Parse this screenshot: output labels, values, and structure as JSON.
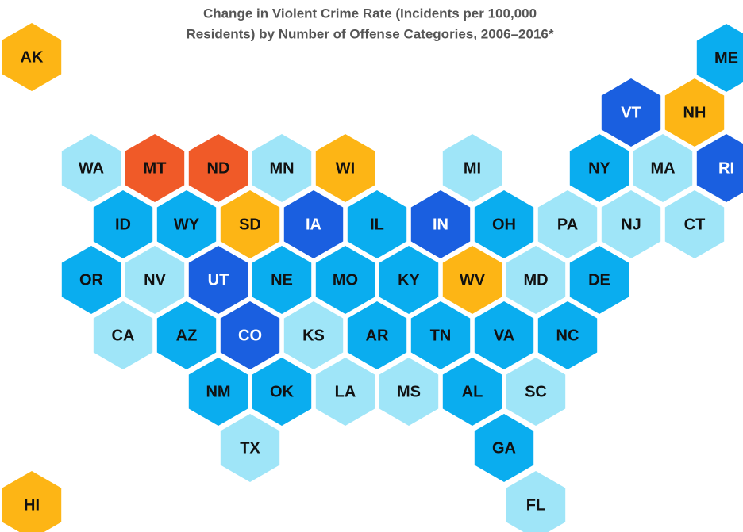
{
  "title": [
    "Change in Violent Crime Rate (Incidents per 100,000",
    "Residents) by Number of Offense Categories, 2006–2016*"
  ],
  "states": [
    {
      "label": "AK",
      "color": "#fdb515"
    },
    {
      "label": "ME",
      "color": "#0aadef"
    },
    {
      "label": "VT",
      "color": "#1a5fe0"
    },
    {
      "label": "NH",
      "color": "#fdb515"
    },
    {
      "label": "WA",
      "color": "#9fe5f8"
    },
    {
      "label": "MT",
      "color": "#f05a28"
    },
    {
      "label": "ND",
      "color": "#f05a28"
    },
    {
      "label": "MN",
      "color": "#9fe5f8"
    },
    {
      "label": "WI",
      "color": "#fdb515"
    },
    {
      "label": "MI",
      "color": "#9fe5f8"
    },
    {
      "label": "NY",
      "color": "#0aadef"
    },
    {
      "label": "MA",
      "color": "#9fe5f8"
    },
    {
      "label": "RI",
      "color": "#1a5fe0"
    },
    {
      "label": "ID",
      "color": "#0aadef"
    },
    {
      "label": "WY",
      "color": "#0aadef"
    },
    {
      "label": "SD",
      "color": "#fdb515"
    },
    {
      "label": "IA",
      "color": "#1a5fe0"
    },
    {
      "label": "IL",
      "color": "#0aadef"
    },
    {
      "label": "IN",
      "color": "#1a5fe0"
    },
    {
      "label": "OH",
      "color": "#0aadef"
    },
    {
      "label": "PA",
      "color": "#9fe5f8"
    },
    {
      "label": "NJ",
      "color": "#9fe5f8"
    },
    {
      "label": "CT",
      "color": "#9fe5f8"
    },
    {
      "label": "OR",
      "color": "#0aadef"
    },
    {
      "label": "NV",
      "color": "#9fe5f8"
    },
    {
      "label": "UT",
      "color": "#1a5fe0"
    },
    {
      "label": "NE",
      "color": "#0aadef"
    },
    {
      "label": "MO",
      "color": "#0aadef"
    },
    {
      "label": "KY",
      "color": "#0aadef"
    },
    {
      "label": "WV",
      "color": "#fdb515"
    },
    {
      "label": "MD",
      "color": "#9fe5f8"
    },
    {
      "label": "DE",
      "color": "#0aadef"
    },
    {
      "label": "CA",
      "color": "#9fe5f8"
    },
    {
      "label": "AZ",
      "color": "#0aadef"
    },
    {
      "label": "CO",
      "color": "#1a5fe0"
    },
    {
      "label": "KS",
      "color": "#9fe5f8"
    },
    {
      "label": "AR",
      "color": "#0aadef"
    },
    {
      "label": "TN",
      "color": "#0aadef"
    },
    {
      "label": "VA",
      "color": "#0aadef"
    },
    {
      "label": "NC",
      "color": "#0aadef"
    },
    {
      "label": "NM",
      "color": "#0aadef"
    },
    {
      "label": "OK",
      "color": "#0aadef"
    },
    {
      "label": "LA",
      "color": "#9fe5f8"
    },
    {
      "label": "MS",
      "color": "#9fe5f8"
    },
    {
      "label": "AL",
      "color": "#0aadef"
    },
    {
      "label": "SC",
      "color": "#9fe5f8"
    },
    {
      "label": "TX",
      "color": "#9fe5f8"
    },
    {
      "label": "GA",
      "color": "#0aadef"
    },
    {
      "label": "FL",
      "color": "#9fe5f8"
    },
    {
      "label": "HI",
      "color": "#fdb515"
    }
  ]
}
